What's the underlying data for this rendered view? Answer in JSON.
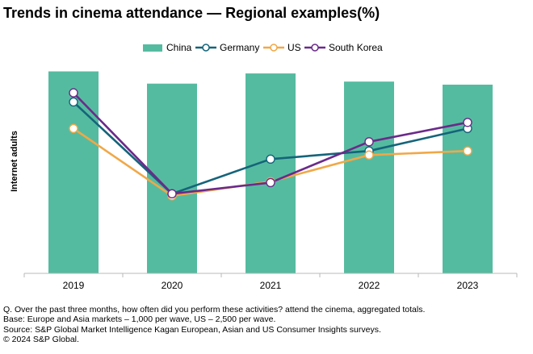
{
  "title": "Trends in cinema attendance — Regional examples(%)",
  "colors": {
    "china": "#55bba0",
    "germany": "#15647a",
    "us": "#f0a848",
    "south_korea": "#6b2a8a",
    "axis": "#b8b8b8"
  },
  "legend": {
    "china": "China",
    "germany": "Germany",
    "us": "US",
    "south_korea": "South Korea"
  },
  "chart_data": {
    "type": "bar",
    "title": "Trends in cinema attendance — Regional examples(%)",
    "xlabel": "",
    "ylabel": "Internet adults",
    "ylim": [
      0,
      100
    ],
    "grid": false,
    "legend_position": "top",
    "categories": [
      "2019",
      "2020",
      "2021",
      "2022",
      "2023"
    ],
    "series": [
      {
        "name": "China",
        "kind": "bar",
        "values": [
          99,
          93,
          98,
          94,
          92.5
        ]
      },
      {
        "name": "Germany",
        "kind": "line",
        "values": [
          84,
          39,
          56,
          60,
          71
        ]
      },
      {
        "name": "US",
        "kind": "line",
        "values": [
          71,
          38,
          45,
          58,
          60
        ]
      },
      {
        "name": "South Korea",
        "kind": "line",
        "values": [
          88.5,
          39,
          44.5,
          64.5,
          74
        ]
      }
    ]
  },
  "footnotes": {
    "question": "Q. Over the past three months, how often did you perform these activities? attend the cinema, aggregated totals.",
    "base": "Base: Europe and Asia markets – 1,000 per wave, US – 2,500 per wave.",
    "source": "Source: S&P Global Market Intelligence Kagan European, Asian and US Consumer Insights surveys.",
    "copyright": "© 2024 S&P Global."
  }
}
